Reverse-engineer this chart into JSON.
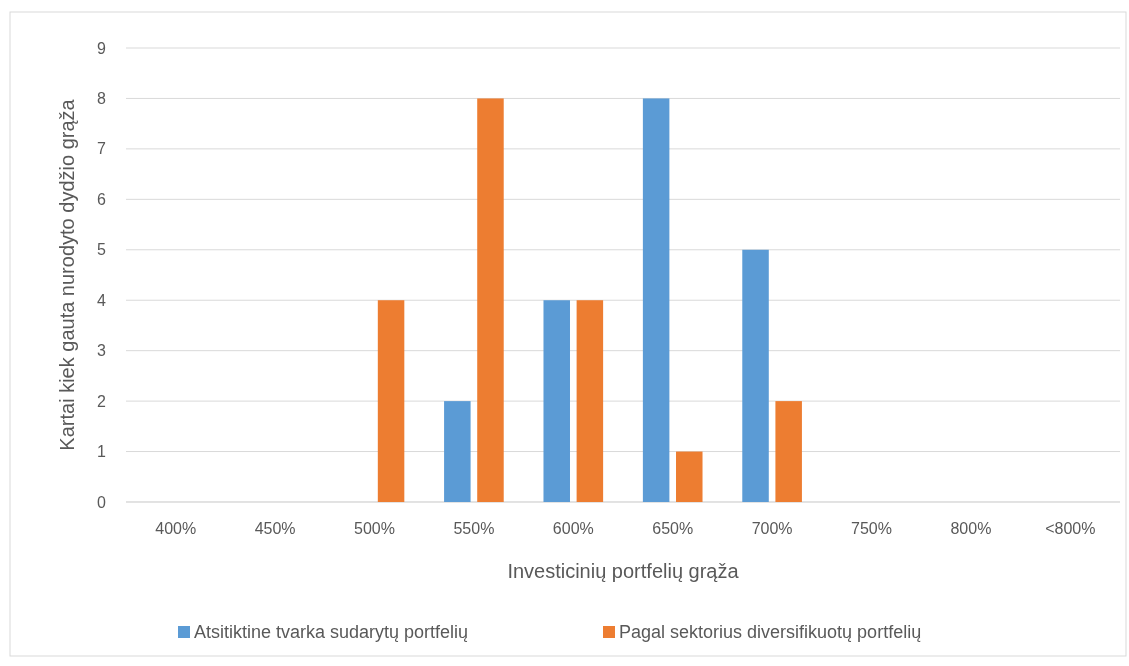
{
  "chart_data": {
    "type": "bar",
    "xlabel": "Investicinių portfelių grąža",
    "ylabel": "Kartai kiek gauta nurodyto dydžio grąža",
    "categories": [
      "400%",
      "450%",
      "500%",
      "550%",
      "600%",
      "650%",
      "700%",
      "750%",
      "800%",
      "<800%"
    ],
    "series": [
      {
        "name": "Atsitiktine tvarka sudarytų portfelių",
        "color": "#5b9bd5",
        "values": [
          0,
          0,
          0,
          2,
          4,
          8,
          5,
          0,
          0,
          0
        ]
      },
      {
        "name": "Pagal sektorius diversifikuotų portfelių",
        "color": "#ed7d31",
        "values": [
          0,
          0,
          4,
          8,
          4,
          1,
          2,
          0,
          0,
          0
        ]
      }
    ],
    "ylim": [
      0,
      9
    ],
    "yticks": [
      0,
      1,
      2,
      3,
      4,
      5,
      6,
      7,
      8,
      9
    ],
    "grid": "y",
    "legend": "bottom"
  }
}
